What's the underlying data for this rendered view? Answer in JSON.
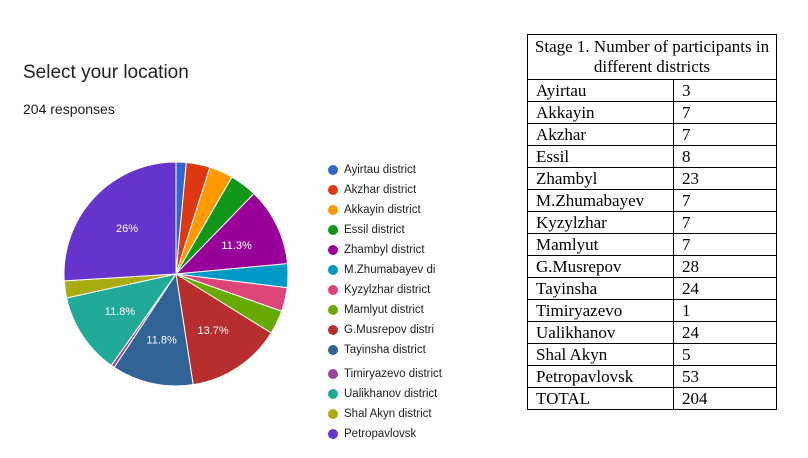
{
  "form": {
    "title": "Select your location",
    "responses": "204 responses"
  },
  "chart_data": {
    "type": "pie",
    "slices": [
      {
        "label": "Ayirtau district",
        "value": 3,
        "color": "#3366cc",
        "show_label": false,
        "pct_label": ""
      },
      {
        "label": "Akzhar district",
        "value": 7,
        "color": "#dc3912",
        "show_label": false,
        "pct_label": ""
      },
      {
        "label": "Akkayin district",
        "value": 7,
        "color": "#ff9900",
        "show_label": false,
        "pct_label": ""
      },
      {
        "label": "Essil district",
        "value": 8,
        "color": "#109618",
        "show_label": false,
        "pct_label": ""
      },
      {
        "label": "Zhambyl district",
        "value": 23,
        "color": "#990099",
        "show_label": true,
        "pct_label": "11.3%"
      },
      {
        "label": "M.Zhumabayev di",
        "value": 7,
        "color": "#0099c6",
        "show_label": false,
        "pct_label": ""
      },
      {
        "label": "Kyzylzhar district",
        "value": 7,
        "color": "#dd4477",
        "show_label": false,
        "pct_label": ""
      },
      {
        "label": "Mamlyut district",
        "value": 7,
        "color": "#66aa00",
        "show_label": false,
        "pct_label": ""
      },
      {
        "label": "G.Musrepov distri",
        "value": 28,
        "color": "#b82e2e",
        "show_label": true,
        "pct_label": "13.7%"
      },
      {
        "label": "Tayinsha district",
        "value": 24,
        "color": "#316395",
        "show_label": true,
        "pct_label": "11.8%"
      },
      {
        "label": "Timiryazevo district",
        "value": 1,
        "color": "#994499",
        "show_label": false,
        "pct_label": ""
      },
      {
        "label": "Ualikhanov district",
        "value": 24,
        "color": "#22aa99",
        "show_label": true,
        "pct_label": "11.8%"
      },
      {
        "label": "Shal Akyn district",
        "value": 5,
        "color": "#aaaa11",
        "show_label": false,
        "pct_label": ""
      },
      {
        "label": "Petropavlovsk",
        "value": 53,
        "color": "#6633cc",
        "show_label": true,
        "pct_label": "26%"
      }
    ]
  },
  "table": {
    "title": "Stage 1. Number of participants in different districts",
    "rows": [
      {
        "name": "Ayirtau",
        "count": "3"
      },
      {
        "name": "Akkayin",
        "count": "7"
      },
      {
        "name": "Akzhar",
        "count": "7"
      },
      {
        "name": "Essil",
        "count": "8"
      },
      {
        "name": "Zhambyl",
        "count": "23"
      },
      {
        "name": "M.Zhumabayev",
        "count": "7"
      },
      {
        "name": "Kyzylzhar",
        "count": "7"
      },
      {
        "name": "Mamlyut",
        "count": "7"
      },
      {
        "name": "G.Musrepov",
        "count": "28"
      },
      {
        "name": "Tayinsha",
        "count": "24"
      },
      {
        "name": "Timiryazevo",
        "count": "1"
      },
      {
        "name": "Ualikhanov",
        "count": "24"
      },
      {
        "name": "Shal Akyn",
        "count": "5"
      },
      {
        "name": "Petropavlovsk",
        "count": "53"
      },
      {
        "name": "TOTAL",
        "count": "204"
      }
    ]
  }
}
